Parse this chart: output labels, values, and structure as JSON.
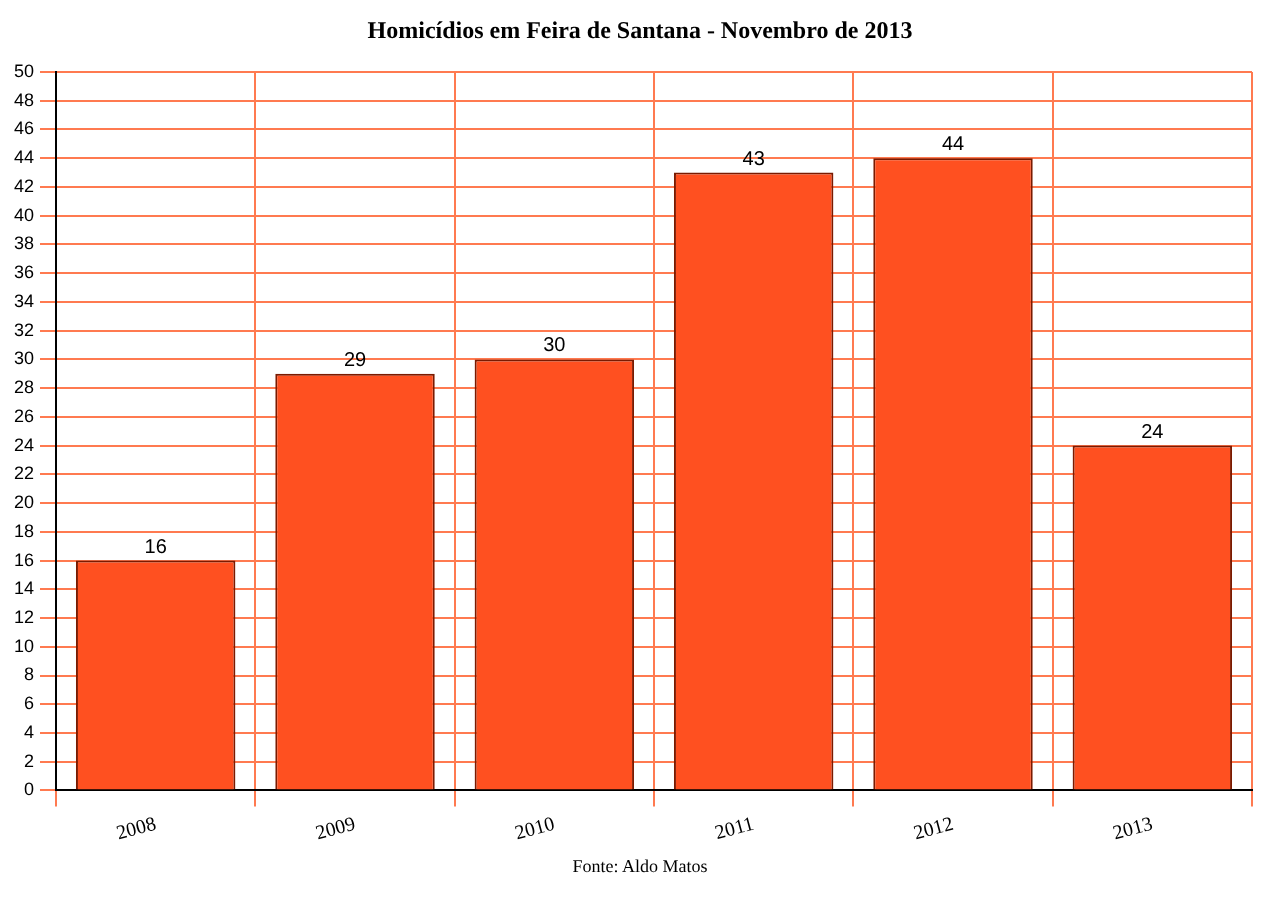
{
  "chart_data": {
    "type": "bar",
    "title": "Homicídios em Feira de Santana - Novembro de 2013",
    "categories": [
      "2008",
      "2009",
      "2010",
      "2011",
      "2012",
      "2013"
    ],
    "values": [
      16,
      29,
      30,
      43,
      44,
      24
    ],
    "color": "#ff5020",
    "ylim": [
      0,
      50
    ],
    "yticks": [
      0,
      2,
      4,
      6,
      8,
      10,
      12,
      14,
      16,
      18,
      20,
      22,
      24,
      26,
      28,
      30,
      32,
      34,
      36,
      38,
      40,
      42,
      44,
      46,
      48,
      50
    ],
    "grid": true,
    "data_labels": true,
    "annotations": [
      "Fonte: Aldo Matos"
    ]
  }
}
